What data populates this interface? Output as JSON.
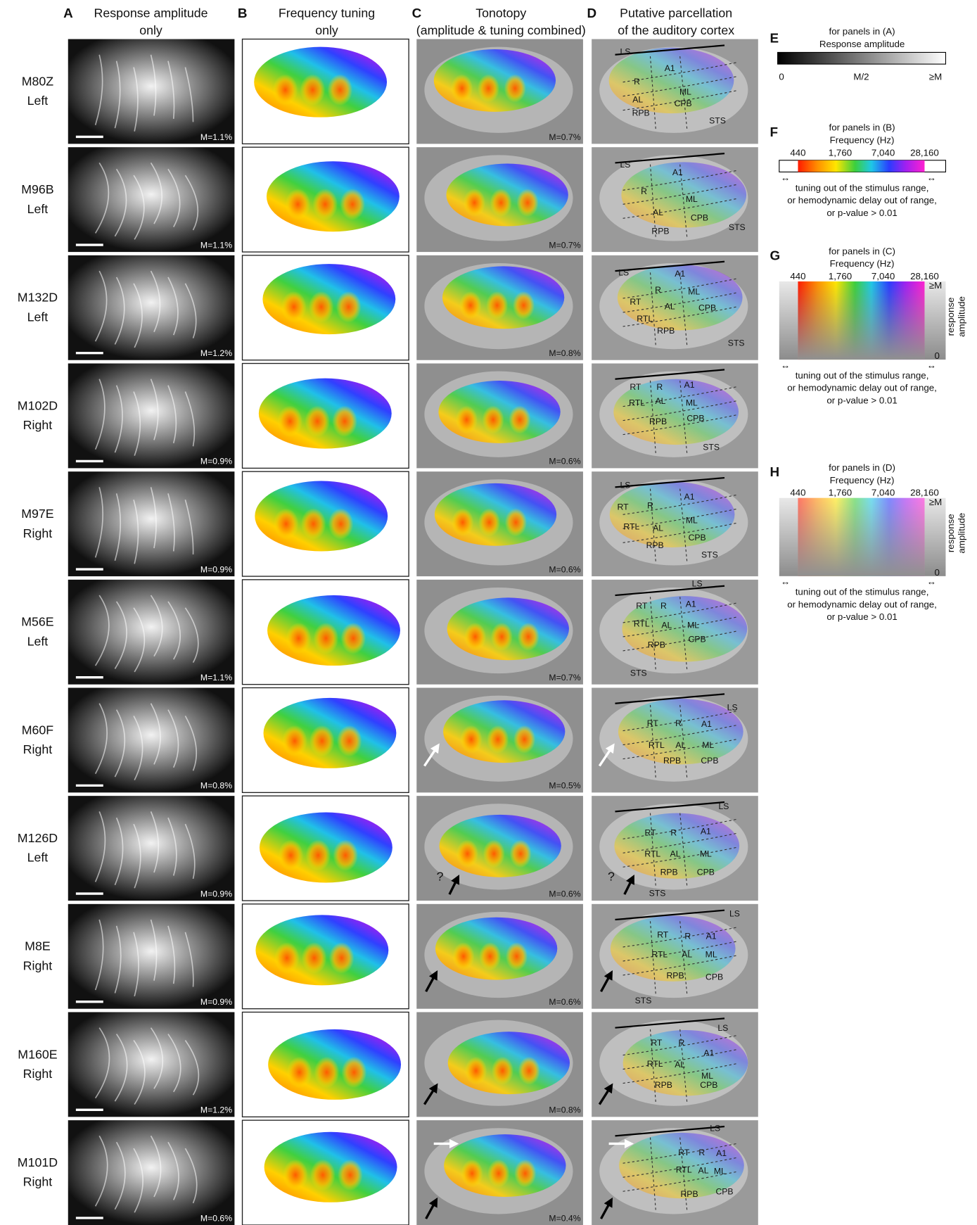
{
  "columns": [
    {
      "letter": "A",
      "title": [
        "Response amplitude",
        "only"
      ]
    },
    {
      "letter": "B",
      "title": [
        "Frequency tuning",
        "only"
      ]
    },
    {
      "letter": "C",
      "title": [
        "Tonotopy",
        "(amplitude & tuning combined)"
      ]
    },
    {
      "letter": "D",
      "title": [
        "Putative parcellation",
        "of the auditory cortex"
      ]
    }
  ],
  "rows": [
    {
      "animal": "M80Z",
      "hemisphere": "Left",
      "amplitude_scale": "M=1.1%",
      "tonotopy_scale": "M=0.7%",
      "regions": [
        "LS",
        "A1",
        "R",
        "ML",
        "AL",
        "CPB",
        "RPB",
        "STS"
      ]
    },
    {
      "animal": "M96B",
      "hemisphere": "Left",
      "amplitude_scale": "M=1.1%",
      "tonotopy_scale": "M=0.7%",
      "regions": [
        "LS",
        "A1",
        "R",
        "ML",
        "AL",
        "CPB",
        "RPB",
        "STS"
      ]
    },
    {
      "animal": "M132D",
      "hemisphere": "Left",
      "amplitude_scale": "M=1.2%",
      "tonotopy_scale": "M=0.8%",
      "regions": [
        "LS",
        "A1",
        "R",
        "RT",
        "ML",
        "RTL",
        "AL",
        "CPB",
        "RPB",
        "STS"
      ]
    },
    {
      "animal": "M102D",
      "hemisphere": "Right",
      "amplitude_scale": "M=0.9%",
      "tonotopy_scale": "M=0.6%",
      "regions": [
        "RT",
        "R",
        "A1",
        "RTL",
        "AL",
        "ML",
        "RPB",
        "CPB",
        "STS"
      ]
    },
    {
      "animal": "M97E",
      "hemisphere": "Right",
      "amplitude_scale": "M=0.9%",
      "tonotopy_scale": "M=0.6%",
      "regions": [
        "LS",
        "A1",
        "RT",
        "R",
        "ML",
        "RTL",
        "AL",
        "RPB",
        "CPB",
        "STS"
      ]
    },
    {
      "animal": "M56E",
      "hemisphere": "Left",
      "amplitude_scale": "M=1.1%",
      "tonotopy_scale": "M=0.7%",
      "regions": [
        "LS",
        "RT",
        "R",
        "A1",
        "RTL",
        "AL",
        "ML",
        "RPB",
        "CPB",
        "STS"
      ]
    },
    {
      "animal": "M60F",
      "hemisphere": "Right",
      "amplitude_scale": "M=0.8%",
      "tonotopy_scale": "M=0.5%",
      "regions": [
        "LS",
        "RT",
        "R",
        "A1",
        "RTL",
        "AL",
        "ML",
        "RPB",
        "CPB"
      ]
    },
    {
      "animal": "M126D",
      "hemisphere": "Left",
      "amplitude_scale": "M=0.9%",
      "tonotopy_scale": "M=0.6%",
      "annotation": "?",
      "regions": [
        "LS",
        "RT",
        "R",
        "A1",
        "RTL",
        "AL",
        "ML",
        "RPB",
        "CPB",
        "STS"
      ]
    },
    {
      "animal": "M8E",
      "hemisphere": "Right",
      "amplitude_scale": "M=0.9%",
      "tonotopy_scale": "M=0.6%",
      "regions": [
        "LS",
        "RT",
        "R",
        "A1",
        "RTL",
        "AL",
        "ML",
        "RPB",
        "CPB",
        "STS"
      ]
    },
    {
      "animal": "M160E",
      "hemisphere": "Right",
      "amplitude_scale": "M=1.2%",
      "tonotopy_scale": "M=0.8%",
      "regions": [
        "LS",
        "RT",
        "R",
        "A1",
        "RTL",
        "AL",
        "ML",
        "RPB",
        "CPB"
      ]
    },
    {
      "animal": "M101D",
      "hemisphere": "Right",
      "amplitude_scale": "M=0.6%",
      "tonotopy_scale": "M=0.4%",
      "regions": [
        "LS",
        "RT",
        "R",
        "A1",
        "RTL",
        "AL",
        "ML",
        "RPB",
        "CPB"
      ]
    }
  ],
  "legends": [
    {
      "letter": "E",
      "caption": [
        "for panels in (A)",
        "Response amplitude"
      ],
      "scale": [
        "0",
        "M/2",
        "≥M"
      ]
    },
    {
      "letter": "F",
      "caption": [
        "for panels in (B)",
        "Frequency (Hz)"
      ],
      "ticks": [
        "440",
        "1,760",
        "7,040",
        "28,160"
      ],
      "out_of_range_mark": "↔",
      "note": [
        "tuning out of the stimulus range,",
        "or hemodynamic delay out of range,",
        "or p-value > 0.01"
      ]
    },
    {
      "letter": "G",
      "caption": [
        "for panels in (C)",
        "Frequency (Hz)"
      ],
      "ticks": [
        "440",
        "1,760",
        "7,040",
        "28,160"
      ],
      "amplitude_max": "≥M",
      "amplitude_min": "0",
      "amplitude_axis": [
        "response",
        "amplitude"
      ],
      "out_of_range_mark": "↔",
      "note": [
        "tuning out of the stimulus range,",
        "or hemodynamic delay out of range,",
        "or p-value > 0.01"
      ]
    },
    {
      "letter": "H",
      "caption": [
        "for panels in (D)",
        "Frequency (Hz)"
      ],
      "ticks": [
        "440",
        "1,760",
        "7,040",
        "28,160"
      ],
      "amplitude_max": "≥M",
      "amplitude_min": "0",
      "amplitude_axis": [
        "response",
        "amplitude"
      ],
      "out_of_range_mark": "↔",
      "note": [
        "tuning out of the stimulus range,",
        "or hemodynamic delay out of range,",
        "or p-value > 0.01"
      ]
    }
  ]
}
